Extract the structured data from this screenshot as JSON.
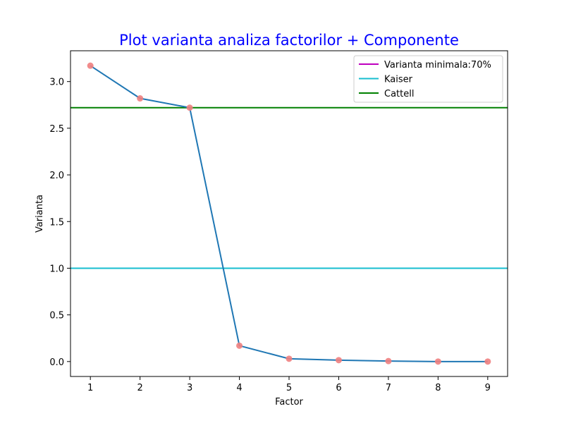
{
  "chart_data": {
    "type": "line",
    "title": "Plot varianta analiza factorilor + Componente",
    "title_color": "#0000ff",
    "xlabel": "Factor",
    "ylabel": "Varianta",
    "x": [
      1,
      2,
      3,
      4,
      5,
      6,
      7,
      8,
      9
    ],
    "xlim": [
      0.6,
      9.4
    ],
    "ylim": [
      -0.16,
      3.33
    ],
    "xticks": [
      "1",
      "2",
      "3",
      "4",
      "5",
      "6",
      "7",
      "8",
      "9"
    ],
    "yticks": [
      {
        "value": 0.0,
        "label": "0.0"
      },
      {
        "value": 0.5,
        "label": "0.5"
      },
      {
        "value": 1.0,
        "label": "1.0"
      },
      {
        "value": 1.5,
        "label": "1.5"
      },
      {
        "value": 2.0,
        "label": "2.0"
      },
      {
        "value": 2.5,
        "label": "2.5"
      },
      {
        "value": 3.0,
        "label": "3.0"
      }
    ],
    "grid": false,
    "series": [
      {
        "values": [
          3.17,
          2.82,
          2.72,
          0.17,
          0.03,
          0.015,
          0.005,
          0.0,
          0.0
        ],
        "line_color": "#1f77b4",
        "marker_color": "#f08080"
      }
    ],
    "hlines": [
      {
        "name": "Varianta minimala:70%",
        "value": null,
        "color": "#bf00bf"
      },
      {
        "name": "Kaiser",
        "value": 1.0,
        "color": "#17becf"
      },
      {
        "name": "Cattell",
        "value": 2.72,
        "color": "#008000"
      }
    ],
    "legend_position": "top-right"
  }
}
